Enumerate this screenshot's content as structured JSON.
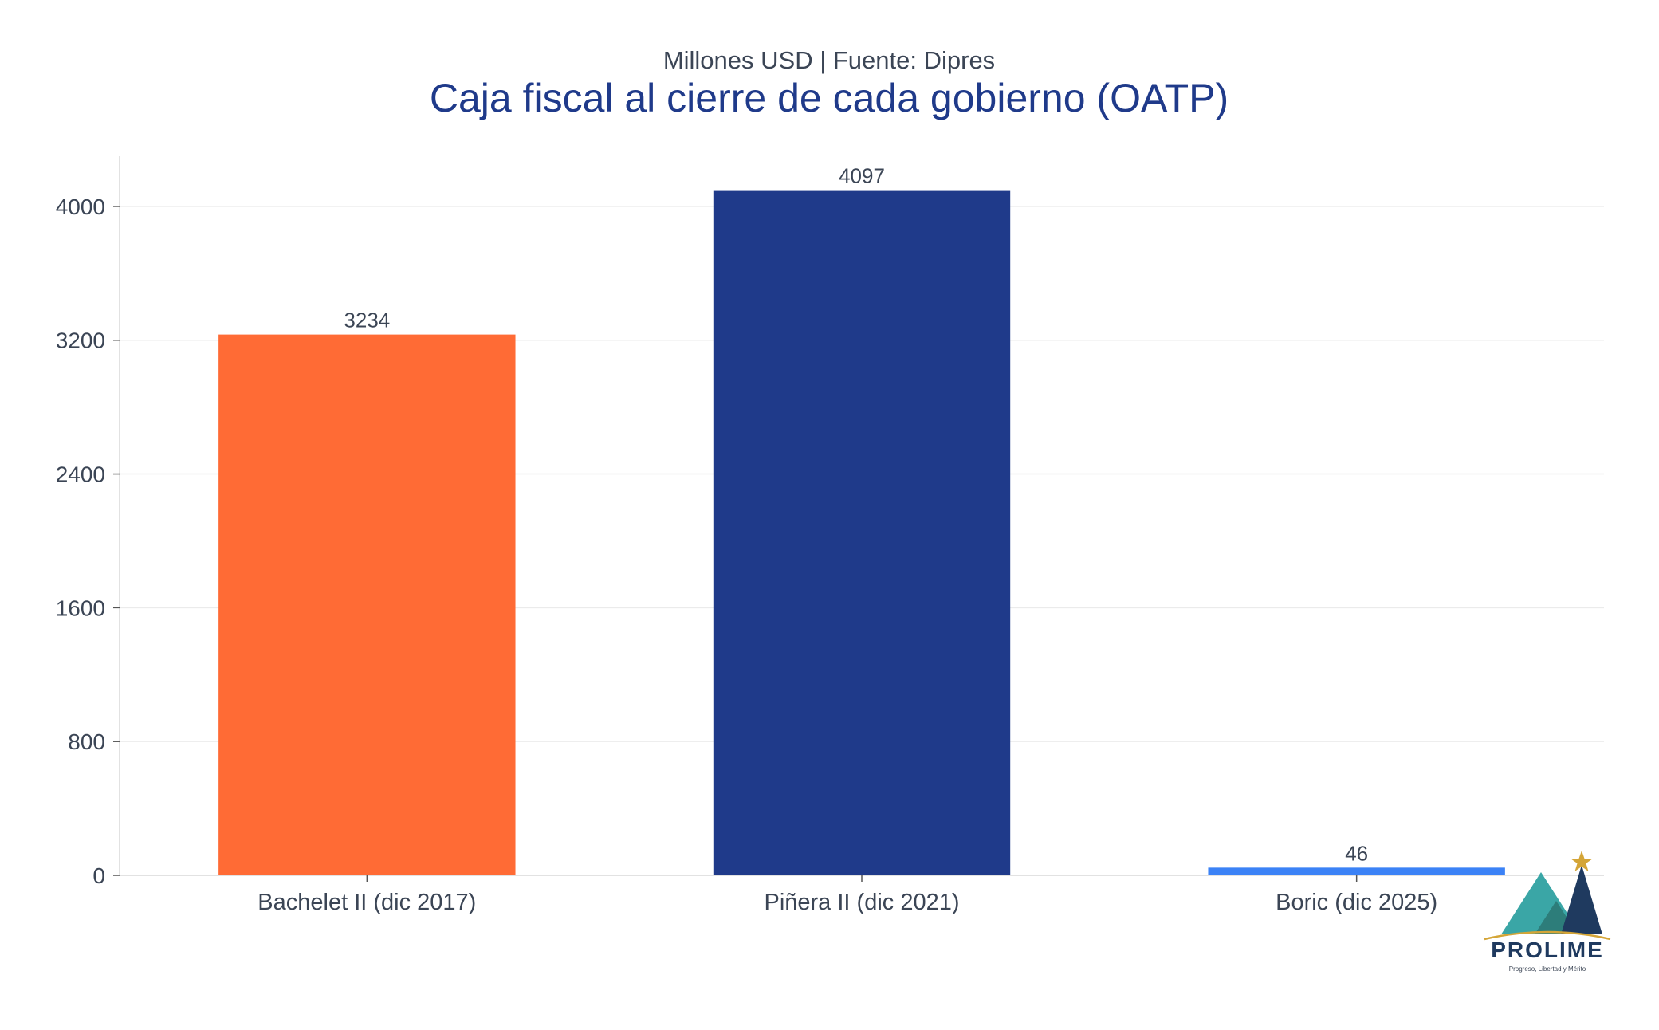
{
  "chart_data": {
    "type": "bar",
    "subtitle": "Millones USD | Fuente: Dipres",
    "title": "Caja fiscal al cierre de cada gobierno (OATP)",
    "categories": [
      "Bachelet II (dic 2017)",
      "Piñera II (dic 2021)",
      "Boric (dic 2025)"
    ],
    "values": [
      3234,
      4097,
      46
    ],
    "data_labels": [
      "3234",
      "4097",
      "46"
    ],
    "colors": [
      "#ff6b35",
      "#1f3a8a",
      "#3b82f6"
    ],
    "ylim": [
      0,
      4300
    ],
    "yticks": [
      0,
      800,
      1600,
      2400,
      3200,
      4000
    ],
    "grid": true,
    "xlabel": "",
    "ylabel": ""
  },
  "logo": {
    "name": "PROLIME",
    "tagline": "Progreso, Libertad y Mérito",
    "colors": {
      "teal": "#3aa6a6",
      "navy": "#1f3a5f",
      "gold": "#d4a537"
    }
  }
}
